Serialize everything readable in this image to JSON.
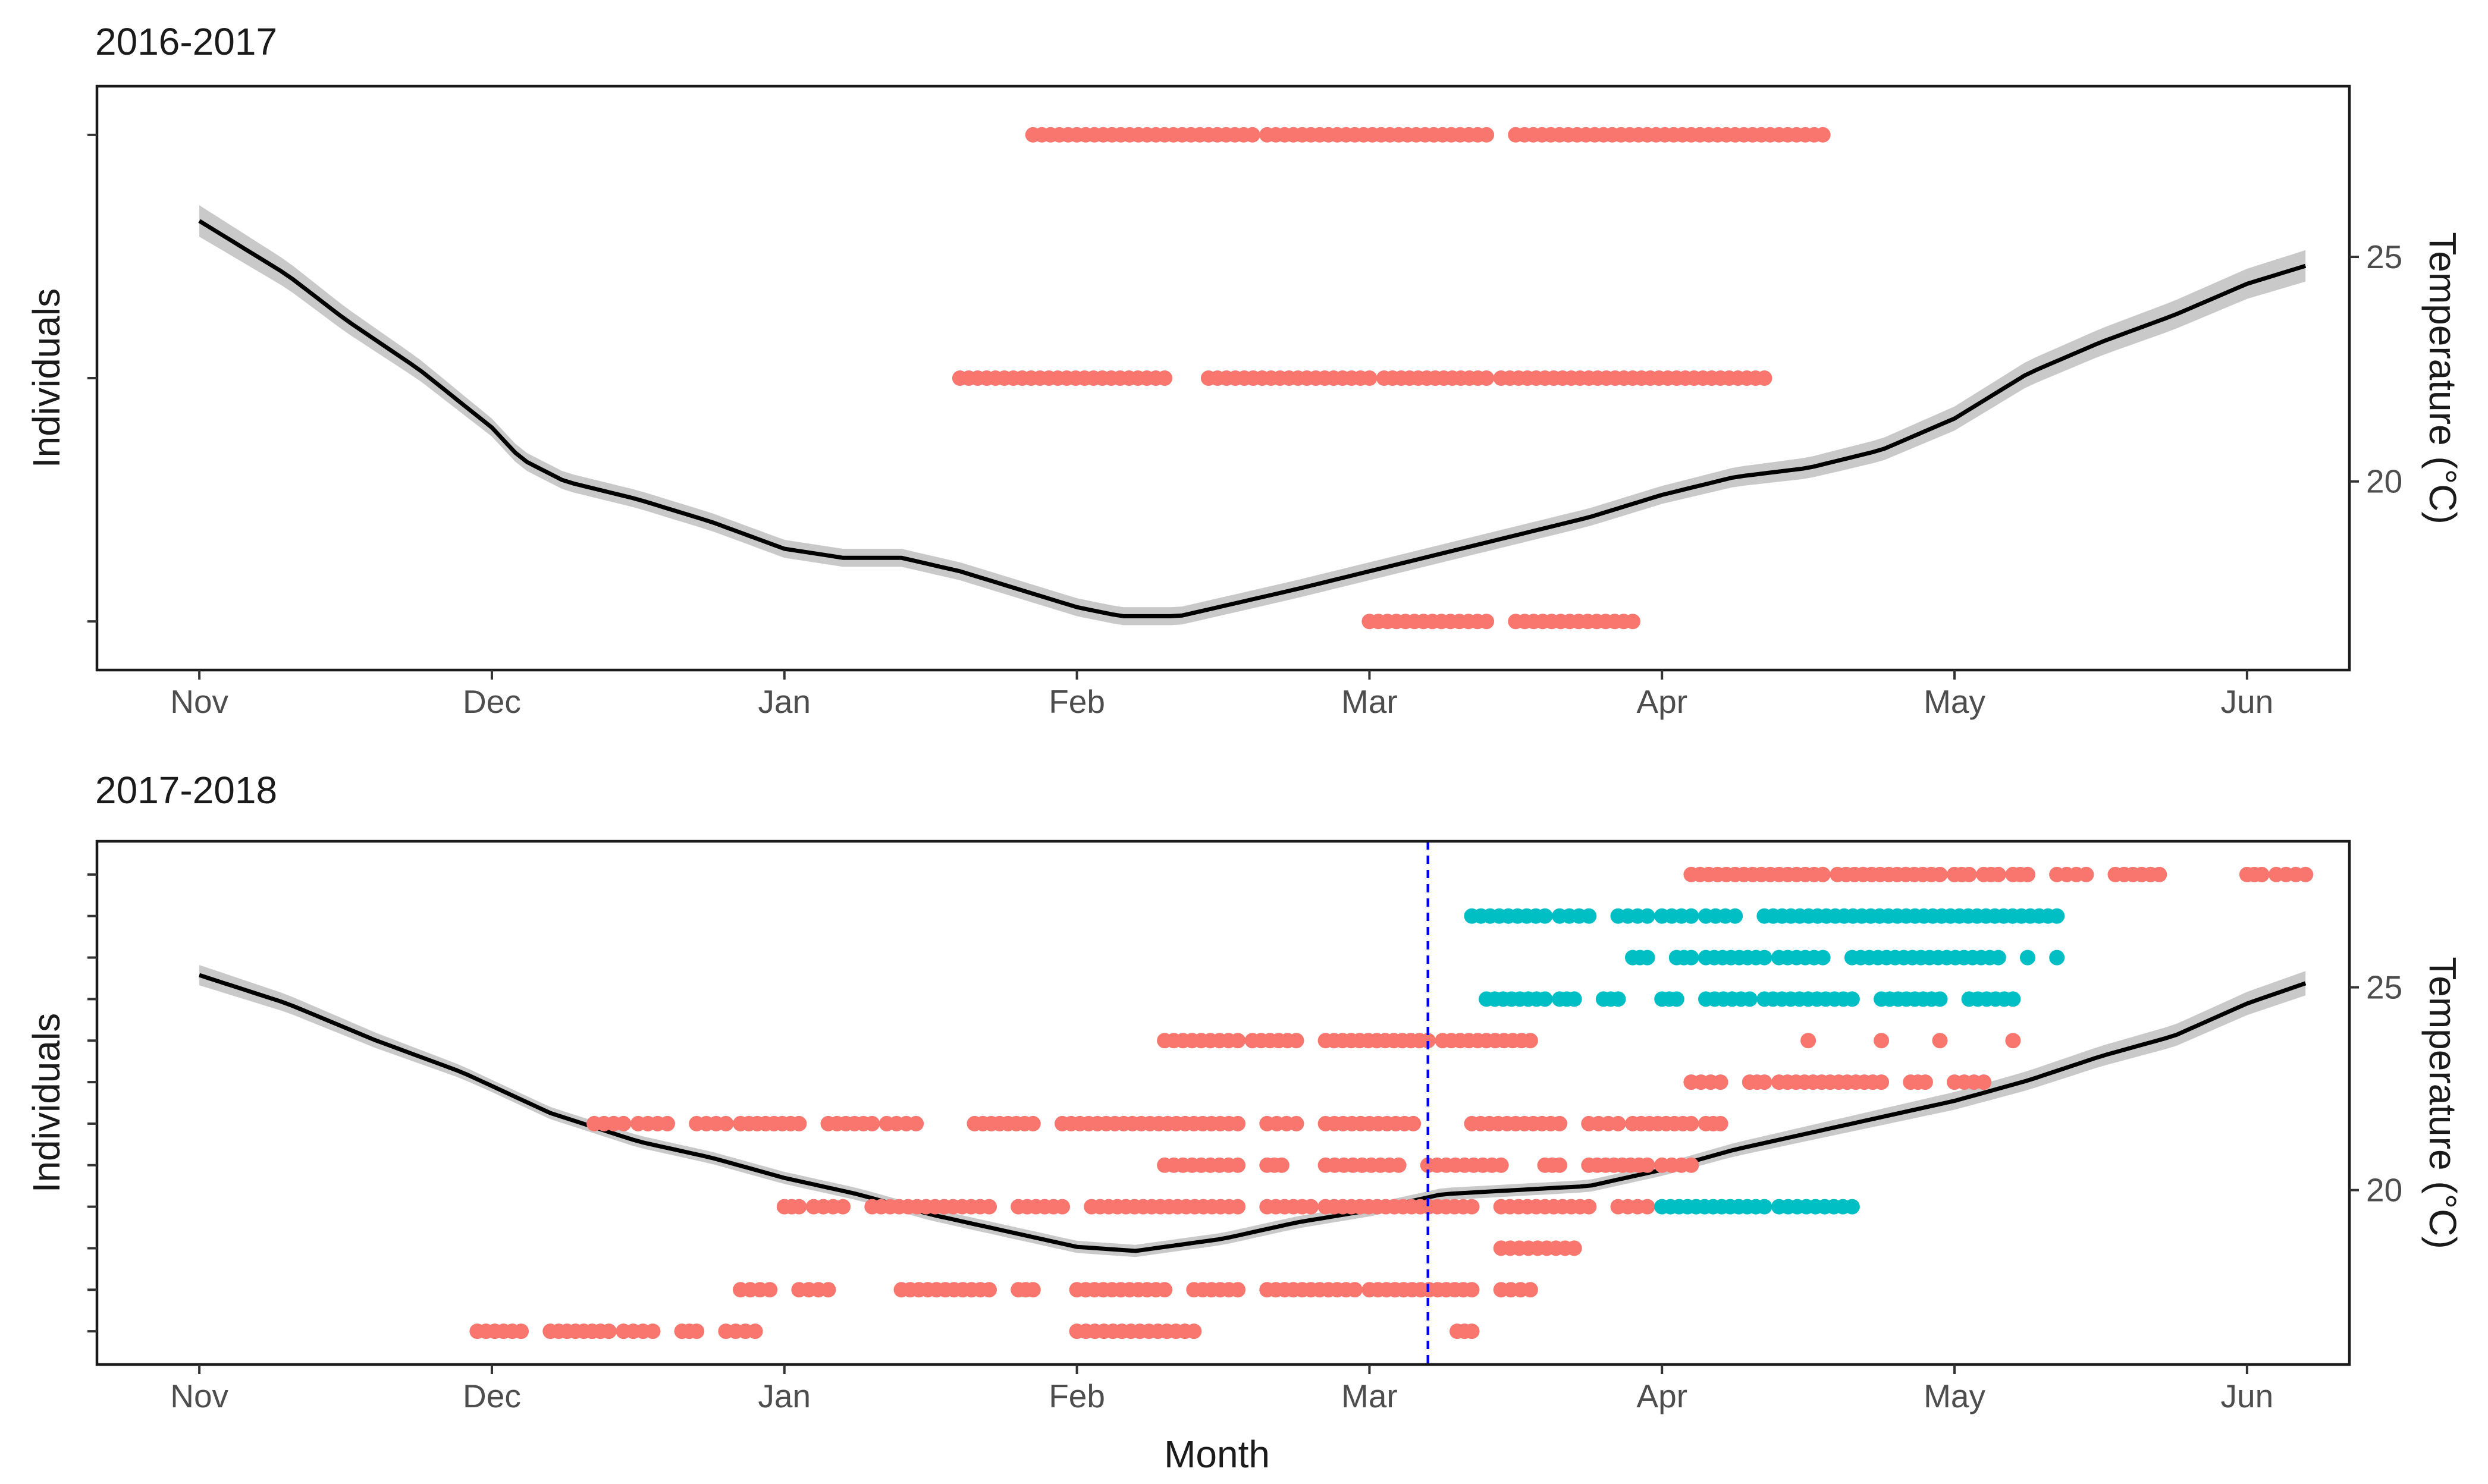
{
  "colors": {
    "group_a": "#F8766D",
    "group_b": "#00BFC4",
    "trend": "#000000",
    "ribbon": "#BFBFBF",
    "marker_line": "#0000FF"
  },
  "chart_data": [
    {
      "type": "scatter",
      "title": "2016-2017",
      "ylabel": "Individuals",
      "y2label": "Temperature (°C)",
      "x_ticks": [
        "Nov",
        "Dec",
        "Jan",
        "Feb",
        "Mar",
        "Apr",
        "May",
        "Jun"
      ],
      "x_range_days": [
        -0.35,
        7.35
      ],
      "y_range_individuals": [
        0.8,
        3.2
      ],
      "y2_range": [
        15.8,
        28.8
      ],
      "y2_ticks": [
        20,
        25
      ],
      "y_tick_count": 3,
      "temperature_curve": [
        [
          0.0,
          25.8
        ],
        [
          0.3,
          24.6
        ],
        [
          0.5,
          23.6
        ],
        [
          0.75,
          22.5
        ],
        [
          1.0,
          21.2
        ],
        [
          1.1,
          20.5
        ],
        [
          1.25,
          20.0
        ],
        [
          1.5,
          19.6
        ],
        [
          1.75,
          19.1
        ],
        [
          2.0,
          18.5
        ],
        [
          2.2,
          18.3
        ],
        [
          2.4,
          18.3
        ],
        [
          2.6,
          18.0
        ],
        [
          2.8,
          17.6
        ],
        [
          3.0,
          17.2
        ],
        [
          3.15,
          17.0
        ],
        [
          3.35,
          17.0
        ],
        [
          3.55,
          17.3
        ],
        [
          3.75,
          17.6
        ],
        [
          4.0,
          18.0
        ],
        [
          4.25,
          18.4
        ],
        [
          4.5,
          18.8
        ],
        [
          4.75,
          19.2
        ],
        [
          5.0,
          19.7
        ],
        [
          5.25,
          20.1
        ],
        [
          5.5,
          20.3
        ],
        [
          5.75,
          20.7
        ],
        [
          6.0,
          21.4
        ],
        [
          6.25,
          22.4
        ],
        [
          6.5,
          23.1
        ],
        [
          6.75,
          23.7
        ],
        [
          7.0,
          24.4
        ],
        [
          7.2,
          24.8
        ]
      ],
      "ribbon_halfwidth": [
        [
          0,
          0.35
        ],
        [
          1,
          0.2
        ],
        [
          3,
          0.2
        ],
        [
          5,
          0.2
        ],
        [
          7.2,
          0.35
        ]
      ],
      "individuals": [
        {
          "row": 1,
          "group": "A",
          "segments": [
            [
              4.0,
              4.4
            ],
            [
              4.5,
              4.9
            ]
          ]
        },
        {
          "row": 2,
          "group": "A",
          "segments": [
            [
              2.6,
              3.3
            ],
            [
              3.45,
              4.0
            ],
            [
              4.05,
              4.4
            ],
            [
              4.45,
              5.35
            ]
          ]
        },
        {
          "row": 3,
          "group": "A",
          "segments": [
            [
              2.85,
              3.6
            ],
            [
              3.65,
              4.4
            ],
            [
              4.5,
              5.55
            ]
          ]
        }
      ],
      "vertical_marker_day": null
    },
    {
      "type": "scatter",
      "title": "2017-2018",
      "xlabel": "Month",
      "ylabel": "Individuals",
      "y2label": "Temperature (°C)",
      "x_ticks": [
        "Nov",
        "Dec",
        "Jan",
        "Feb",
        "Mar",
        "Apr",
        "May",
        "Jun"
      ],
      "x_range_days": [
        -0.35,
        7.35
      ],
      "y_range_individuals": [
        0.2,
        12.8
      ],
      "y2_range": [
        15.7,
        28.6
      ],
      "y2_ticks": [
        20,
        25
      ],
      "y_tick_count": 12,
      "temperature_curve": [
        [
          0.0,
          25.3
        ],
        [
          0.3,
          24.6
        ],
        [
          0.6,
          23.7
        ],
        [
          0.9,
          22.9
        ],
        [
          1.2,
          21.9
        ],
        [
          1.5,
          21.2
        ],
        [
          1.75,
          20.8
        ],
        [
          2.0,
          20.3
        ],
        [
          2.25,
          19.9
        ],
        [
          2.5,
          19.4
        ],
        [
          2.75,
          19.0
        ],
        [
          3.0,
          18.6
        ],
        [
          3.2,
          18.5
        ],
        [
          3.5,
          18.8
        ],
        [
          3.75,
          19.2
        ],
        [
          4.0,
          19.5
        ],
        [
          4.25,
          19.9
        ],
        [
          4.5,
          20.0
        ],
        [
          4.75,
          20.1
        ],
        [
          5.0,
          20.5
        ],
        [
          5.25,
          21.0
        ],
        [
          5.5,
          21.4
        ],
        [
          5.75,
          21.8
        ],
        [
          6.0,
          22.2
        ],
        [
          6.25,
          22.7
        ],
        [
          6.5,
          23.3
        ],
        [
          6.75,
          23.8
        ],
        [
          7.0,
          24.6
        ],
        [
          7.2,
          25.1
        ]
      ],
      "ribbon_halfwidth": [
        [
          0,
          0.25
        ],
        [
          1,
          0.15
        ],
        [
          3,
          0.15
        ],
        [
          5,
          0.15
        ],
        [
          7.2,
          0.3
        ]
      ],
      "vertical_marker_day": 4.2,
      "individuals": [
        {
          "row": 1,
          "group": "A",
          "segments": [
            [
              0.95,
              1.1
            ],
            [
              1.2,
              1.4
            ],
            [
              1.45,
              1.55
            ],
            [
              1.65,
              1.7
            ],
            [
              1.8,
              1.9
            ],
            [
              3.0,
              3.4
            ],
            [
              4.3,
              4.35
            ]
          ]
        },
        {
          "row": 2,
          "group": "A",
          "segments": [
            [
              1.85,
              1.95
            ],
            [
              2.05,
              2.15
            ],
            [
              2.4,
              2.7
            ],
            [
              2.8,
              2.85
            ],
            [
              3.0,
              3.3
            ],
            [
              3.4,
              3.55
            ],
            [
              3.65,
              3.95
            ],
            [
              4.0,
              4.35
            ],
            [
              4.45,
              4.55
            ]
          ]
        },
        {
          "row": 3,
          "group": "A",
          "segments": [
            [
              4.45,
              4.7
            ]
          ]
        },
        {
          "row": 4,
          "group": "A",
          "segments": [
            [
              2.0,
              2.05
            ],
            [
              2.1,
              2.2
            ],
            [
              2.3,
              2.7
            ],
            [
              2.8,
              2.95
            ],
            [
              3.05,
              3.55
            ],
            [
              3.65,
              3.8
            ],
            [
              3.85,
              4.35
            ],
            [
              4.45,
              4.75
            ],
            [
              4.85,
              4.95
            ]
          ]
        },
        {
          "row": 4,
          "group": "B",
          "segments": [
            [
              5.0,
              5.35
            ],
            [
              5.4,
              5.65
            ]
          ]
        },
        {
          "row": 5,
          "group": "A",
          "segments": [
            [
              3.3,
              3.55
            ],
            [
              3.65,
              3.7
            ],
            [
              3.85,
              4.1
            ],
            [
              4.2,
              4.45
            ],
            [
              4.6,
              4.65
            ],
            [
              4.75,
              4.95
            ],
            [
              5.0,
              5.1
            ]
          ]
        },
        {
          "row": 6,
          "group": "A",
          "segments": [
            [
              1.35,
              1.45
            ],
            [
              1.5,
              1.6
            ],
            [
              1.7,
              1.8
            ],
            [
              1.85,
              2.05
            ],
            [
              2.15,
              2.3
            ],
            [
              2.35,
              2.45
            ],
            [
              2.65,
              2.85
            ],
            [
              2.95,
              3.55
            ],
            [
              3.65,
              3.75
            ],
            [
              3.85,
              4.15
            ],
            [
              4.35,
              4.65
            ],
            [
              4.75,
              4.85
            ],
            [
              4.9,
              5.1
            ],
            [
              5.15,
              5.2
            ]
          ]
        },
        {
          "row": 7,
          "group": "A",
          "segments": [
            [
              5.1,
              5.2
            ],
            [
              5.3,
              5.35
            ],
            [
              5.4,
              5.75
            ],
            [
              5.85,
              5.9
            ],
            [
              6.0,
              6.1
            ]
          ]
        },
        {
          "row": 8,
          "group": "A",
          "segments": [
            [
              3.3,
              3.55
            ],
            [
              3.6,
              3.75
            ],
            [
              3.85,
              4.2
            ],
            [
              4.25,
              4.55
            ],
            [
              5.5,
              5.5
            ],
            [
              5.75,
              5.75
            ],
            [
              5.95,
              5.95
            ],
            [
              6.2,
              6.2
            ]
          ]
        },
        {
          "row": 9,
          "group": "B",
          "segments": [
            [
              4.4,
              4.6
            ],
            [
              4.65,
              4.7
            ],
            [
              4.8,
              4.85
            ],
            [
              5.0,
              5.05
            ],
            [
              5.15,
              5.3
            ],
            [
              5.35,
              5.65
            ],
            [
              5.75,
              5.95
            ],
            [
              6.05,
              6.2
            ]
          ]
        },
        {
          "row": 10,
          "group": "B",
          "segments": [
            [
              4.9,
              4.95
            ],
            [
              5.05,
              5.1
            ],
            [
              5.15,
              5.35
            ],
            [
              5.4,
              5.55
            ],
            [
              5.65,
              6.15
            ],
            [
              6.25,
              6.25
            ],
            [
              6.35,
              6.35
            ]
          ]
        },
        {
          "row": 11,
          "group": "B",
          "segments": [
            [
              4.35,
              4.6
            ],
            [
              4.65,
              4.75
            ],
            [
              4.85,
              4.95
            ],
            [
              5.0,
              5.1
            ],
            [
              5.15,
              5.25
            ],
            [
              5.35,
              6.35
            ]
          ]
        },
        {
          "row": 12,
          "group": "A",
          "segments": [
            [
              5.1,
              5.55
            ],
            [
              5.6,
              5.95
            ],
            [
              6.0,
              6.05
            ],
            [
              6.1,
              6.15
            ],
            [
              6.2,
              6.25
            ],
            [
              6.35,
              6.45
            ],
            [
              6.55,
              6.7
            ],
            [
              7.0,
              7.05
            ],
            [
              7.1,
              7.2
            ]
          ]
        }
      ]
    }
  ]
}
